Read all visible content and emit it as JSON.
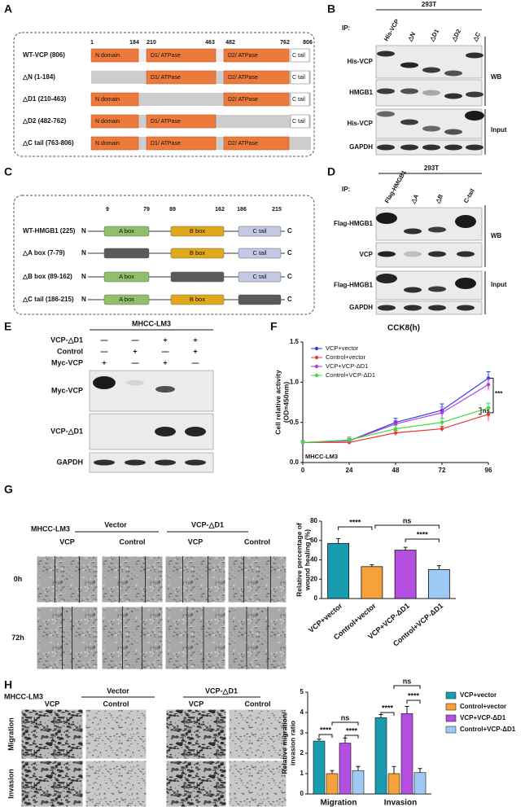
{
  "panel_labels": [
    "A",
    "B",
    "C",
    "D",
    "E",
    "F",
    "G",
    "H"
  ],
  "panel_a": {
    "positions": [
      1,
      184,
      210,
      463,
      482,
      762,
      806
    ],
    "domains": [
      "N domain",
      "D1/ ATPase",
      "D2/ ATPase",
      "C tail"
    ],
    "constructs": [
      "WT-VCP (806)",
      "△N (1-184)",
      "△D1 (210-463)",
      "△D2 (482-762)",
      "△C tail (763-806)"
    ]
  },
  "panel_b": {
    "cell_line": "293T",
    "ip": "IP:",
    "lanes": [
      "His-VCP",
      "△N",
      "△D1",
      "△D2",
      "△C"
    ],
    "blots": [
      "His-VCP",
      "HMGB1",
      "His-VCP",
      "GAPDH"
    ],
    "groups": [
      "WB",
      "Input"
    ]
  },
  "panel_c": {
    "positions": [
      9,
      79,
      89,
      162,
      186,
      215
    ],
    "domains": [
      "A box",
      "B box",
      "C tail"
    ],
    "termini": [
      "N",
      "C"
    ],
    "constructs": [
      "WT-HMGB1 (225)",
      "△A box (7-79)",
      "△B box (89-162)",
      "△C tail (186-215)"
    ]
  },
  "panel_d": {
    "cell_line": "293T",
    "ip": "IP:",
    "lanes": [
      "Flag-HMGB1",
      "△A",
      "△B",
      "C-tail"
    ],
    "blots": [
      "Flag-HMGB1",
      "VCP",
      "Flag-HMGB1",
      "GAPDH"
    ],
    "groups": [
      "WB",
      "Input"
    ]
  },
  "panel_e": {
    "cell_line": "MHCC-LM3",
    "conditions": [
      {
        "label": "VCP-△D1",
        "signs": [
          "—",
          "—",
          "+",
          "+"
        ]
      },
      {
        "label": "Control",
        "signs": [
          "—",
          "+",
          "—",
          "+"
        ]
      },
      {
        "label": "Myc-VCP",
        "signs": [
          "+",
          "—",
          "+",
          "—"
        ]
      }
    ],
    "blots": [
      "Myc-VCP",
      "VCP-△D1",
      "GAPDH"
    ]
  },
  "panel_g": {
    "cell_line": "MHCC-LM3",
    "groups": [
      "Vector",
      "VCP-△D1"
    ],
    "columns": [
      "VCP",
      "Control",
      "VCP",
      "Control"
    ],
    "times": [
      "0h",
      "72h"
    ]
  },
  "panel_h": {
    "cell_line": "MHCC-LM3",
    "groups": [
      "Vector",
      "VCP-△D1"
    ],
    "columns": [
      "VCP",
      "Control",
      "VCP",
      "Control"
    ],
    "assays": [
      "Migration",
      "Invasion"
    ]
  },
  "chart_data": [
    {
      "type": "line",
      "title": "CCK8(h)",
      "ylabel": [
        "Cell relative activity",
        "(OD=450nm)"
      ],
      "x": [
        0,
        24,
        48,
        72,
        96
      ],
      "xlim": [
        0,
        96
      ],
      "xticks": [
        0,
        24,
        48,
        72,
        96
      ],
      "ylim": [
        0,
        1.5
      ],
      "yticks": [
        {
          "value": 0,
          "label": "0.0"
        },
        0.5,
        {
          "value": 1,
          "label": "1.0"
        },
        {
          "value": 1.5,
          "label": "1.5"
        }
      ],
      "legend": "upper left",
      "series": [
        {
          "name": "VCP+vector",
          "color": "#2b3ff0",
          "values": [
            0.25,
            0.27,
            0.5,
            0.65,
            1.05
          ],
          "errors": [
            0.02,
            0.03,
            0.05,
            0.08,
            0.08
          ]
        },
        {
          "name": "Control+vector",
          "color": "#e8382e",
          "values": [
            0.25,
            0.25,
            0.37,
            0.42,
            0.6
          ],
          "errors": [
            0.02,
            0.02,
            0.03,
            0.03,
            0.08
          ]
        },
        {
          "name": "VCP+VCP-ΔD1",
          "color": "#b43be0",
          "values": [
            0.25,
            0.27,
            0.48,
            0.62,
            0.97
          ],
          "errors": [
            0.02,
            0.03,
            0.04,
            0.07,
            0.07
          ]
        },
        {
          "name": "Control+VCP-ΔD1",
          "color": "#3ddc3d",
          "values": [
            0.25,
            0.28,
            0.42,
            0.5,
            0.68
          ],
          "errors": [
            0.02,
            0.04,
            0.04,
            0.05,
            0.06
          ]
        }
      ],
      "annotations": [
        "***",
        "ns",
        "MHCC-LM3"
      ]
    },
    {
      "type": "bar",
      "ylabel": [
        "Relative percentage of",
        "wound healing (%)"
      ],
      "categories": [
        "VCP+vector",
        "Control+vector",
        "VCP+VCP-ΔD1",
        "Control+VCP-ΔD1"
      ],
      "values": [
        57,
        33,
        50,
        30
      ],
      "errors": [
        5,
        2,
        3,
        4
      ],
      "colors": [
        "#1a9cb0",
        "#f7a13a",
        "#b44fe0",
        "#9ec9f5"
      ],
      "ylim": [
        0,
        80
      ],
      "yticks": [
        0,
        20,
        40,
        60,
        80
      ],
      "annotations": [
        "****",
        "ns",
        "****"
      ]
    },
    {
      "type": "bar",
      "ylabel": [
        "Relative migration/",
        "invasion ratio"
      ],
      "categories": [
        "Migration",
        "Invasion"
      ],
      "ylim": [
        0,
        5
      ],
      "yticks": [
        0,
        1,
        2,
        3,
        4,
        5
      ],
      "legend": "right",
      "series": [
        {
          "name": "VCP+vector",
          "color": "#1a9cb0",
          "values": [
            2.6,
            3.75
          ],
          "errors": [
            0.1,
            0.15
          ]
        },
        {
          "name": "Control+vector",
          "color": "#f7a13a",
          "values": [
            1.0,
            1.0
          ],
          "errors": [
            0.15,
            0.35
          ]
        },
        {
          "name": "VCP+VCP-ΔD1",
          "color": "#b44fe0",
          "values": [
            2.5,
            3.95
          ],
          "errors": [
            0.25,
            0.35
          ]
        },
        {
          "name": "Control+VCP-ΔD1",
          "color": "#9ec9f5",
          "values": [
            1.15,
            1.05
          ],
          "errors": [
            0.2,
            0.2
          ]
        }
      ],
      "annotations": [
        "****",
        "ns",
        "****",
        "****",
        "ns",
        "****"
      ]
    }
  ]
}
